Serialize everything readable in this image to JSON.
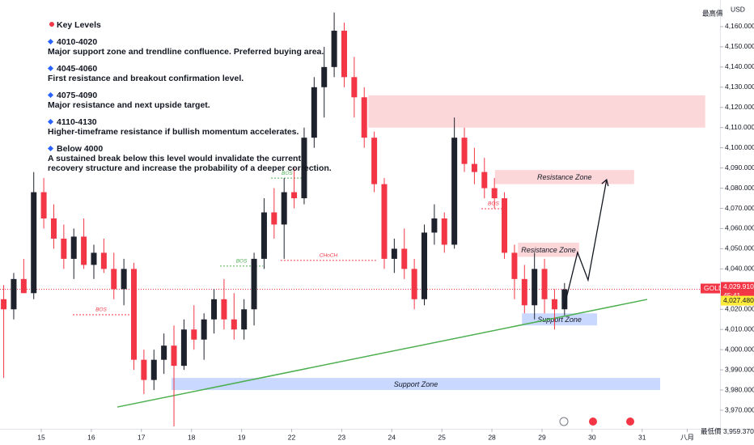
{
  "chart_data": {
    "type": "candlestick",
    "currency": "USD",
    "up_color": "#1e222d",
    "down_color": "#f23645",
    "xlim": [
      -0.824,
      13.555
    ],
    "ylim": [
      3960.8,
      4173.2
    ],
    "grid": false,
    "xticks": [
      {
        "value": 0,
        "label": "15"
      },
      {
        "value": 1,
        "label": "16"
      },
      {
        "value": 2,
        "label": "17"
      },
      {
        "value": 3,
        "label": "18"
      },
      {
        "value": 4,
        "label": "19"
      },
      {
        "value": 5,
        "label": "22"
      },
      {
        "value": 6,
        "label": "23"
      },
      {
        "value": 7,
        "label": "24"
      },
      {
        "value": 8,
        "label": "25"
      },
      {
        "value": 9,
        "label": "28"
      },
      {
        "value": 10,
        "label": "29"
      },
      {
        "value": 11,
        "label": "30"
      },
      {
        "value": 12,
        "label": "31"
      },
      {
        "value": 12.9,
        "label": "八月"
      }
    ],
    "yticks": [
      {
        "value": 3970,
        "label": "3,970.000"
      },
      {
        "value": 3980,
        "label": "3,980.000"
      },
      {
        "value": 3990,
        "label": "3,990.000"
      },
      {
        "value": 4000,
        "label": "4,000.000"
      },
      {
        "value": 4010,
        "label": "4,010.000"
      },
      {
        "value": 4020,
        "label": "4,020.000"
      },
      {
        "value": 4030,
        "label": "4,030.000"
      },
      {
        "value": 4040,
        "label": "4,040.000"
      },
      {
        "value": 4050,
        "label": "4,050.000"
      },
      {
        "value": 4060,
        "label": "4,060.000"
      },
      {
        "value": 4070,
        "label": "4,070.000"
      },
      {
        "value": 4080,
        "label": "4,080.000"
      },
      {
        "value": 4090,
        "label": "4,090.000"
      },
      {
        "value": 4100,
        "label": "4,100.000"
      },
      {
        "value": 4110,
        "label": "4,110.000"
      },
      {
        "value": 4120,
        "label": "4,120.000"
      },
      {
        "value": 4130,
        "label": "4,130.000"
      },
      {
        "value": 4140,
        "label": "4,140.000"
      },
      {
        "value": 4150,
        "label": "4,150.000"
      },
      {
        "value": 4160,
        "label": "4,160.000"
      }
    ],
    "x": [
      -0.75,
      -0.55,
      -0.35,
      -0.15,
      0.05,
      0.25,
      0.45,
      0.65,
      0.85,
      1.05,
      1.25,
      1.45,
      1.65,
      1.85,
      2.05,
      2.25,
      2.45,
      2.65,
      2.85,
      3.05,
      3.25,
      3.45,
      3.65,
      3.85,
      4.05,
      4.25,
      4.45,
      4.65,
      4.85,
      5.05,
      5.25,
      5.45,
      5.65,
      5.85,
      6.05,
      6.25,
      6.45,
      6.65,
      6.85,
      7.05,
      7.25,
      7.45,
      7.65,
      7.85,
      8.05,
      8.25,
      8.45,
      8.65,
      8.85,
      9.05,
      9.25,
      9.45,
      9.65,
      9.85,
      10.05,
      10.25,
      10.45
    ],
    "open": [
      4025,
      4020,
      4035,
      4028,
      4078,
      4065,
      4055,
      4045,
      4056,
      4042,
      4048,
      4040,
      4030,
      4040,
      3995,
      3985,
      3995,
      4002,
      3992,
      4010,
      4005,
      4015,
      4025,
      4015,
      4010,
      4020,
      4045,
      4068,
      4062,
      4078,
      4075,
      4105,
      4130,
      4140,
      4158,
      4135,
      4125,
      4105,
      4082,
      4045,
      4050,
      4040,
      4025,
      4058,
      4065,
      4052,
      4105,
      4092,
      4088,
      4080,
      4075,
      4048,
      4035,
      4022,
      4040,
      4025,
      4020
    ],
    "high": [
      4032,
      4038,
      4045,
      4088,
      4085,
      4072,
      4062,
      4060,
      4065,
      4052,
      4055,
      4048,
      4045,
      4043,
      4000,
      4000,
      4008,
      4012,
      4015,
      4022,
      4018,
      4030,
      4035,
      4028,
      4025,
      4048,
      4075,
      4080,
      4085,
      4090,
      4110,
      4135,
      4150,
      4167,
      4162,
      4145,
      4130,
      4108,
      4085,
      4055,
      4060,
      4045,
      4062,
      4072,
      4068,
      4115,
      4110,
      4100,
      4095,
      4085,
      4078,
      4052,
      4042,
      4048,
      4045,
      4030,
      4033
    ],
    "low": [
      3986,
      4015,
      4030,
      4025,
      4060,
      4050,
      4040,
      4035,
      4040,
      4035,
      4038,
      4025,
      4022,
      3990,
      3978,
      3980,
      3988,
      3962,
      3990,
      4000,
      3995,
      4008,
      4010,
      4005,
      4005,
      4012,
      4040,
      4055,
      4045,
      4070,
      4072,
      4100,
      4115,
      4135,
      4130,
      4115,
      4100,
      4078,
      4040,
      4038,
      4035,
      4020,
      4022,
      4052,
      4048,
      4050,
      4088,
      4082,
      4075,
      4070,
      4045,
      4025,
      4018,
      4015,
      4018,
      4010,
      4017
    ],
    "close": [
      4020,
      4035,
      4028,
      4078,
      4065,
      4055,
      4045,
      4056,
      4042,
      4048,
      4040,
      4030,
      4040,
      3995,
      3985,
      3995,
      4002,
      3992,
      4010,
      4005,
      4015,
      4025,
      4015,
      4010,
      4020,
      4045,
      4068,
      4062,
      4078,
      4075,
      4105,
      4130,
      4140,
      4158,
      4135,
      4125,
      4105,
      4082,
      4045,
      4050,
      4040,
      4025,
      4058,
      4065,
      4052,
      4105,
      4092,
      4088,
      4080,
      4075,
      4048,
      4035,
      4022,
      4040,
      4025,
      4020,
      4029.91
    ],
    "zones": [
      {
        "low": 4110,
        "high": 4126,
        "x": [
          6.53,
          13.26
        ],
        "color": "rgba(242,54,69,0.2)"
      },
      {
        "label": "Resistance Zone",
        "low": 4082,
        "high": 4089,
        "x": [
          9.06,
          11.84
        ],
        "color": "rgba(242,54,69,0.2)"
      },
      {
        "label": "Resistance Zone",
        "low": 4046,
        "high": 4053,
        "x": [
          9.52,
          10.74
        ],
        "color": "rgba(242,54,69,0.2)"
      },
      {
        "label": "Support Zone",
        "low": 4012,
        "high": 4018,
        "x": [
          9.6,
          11.1
        ],
        "color": "rgba(41,98,255,0.25)"
      },
      {
        "label": "Support Zone",
        "low": 3980,
        "high": 3986,
        "x": [
          2.6,
          12.36
        ],
        "color": "rgba(41,98,255,0.25)"
      }
    ],
    "structure": [
      {
        "label": "BOS",
        "price": 4017.3,
        "x": [
          0.63,
          1.76
        ],
        "color": "#f23645"
      },
      {
        "label": "BOS",
        "price": 4041.4,
        "x": [
          3.57,
          4.43
        ],
        "color": "#4caf50"
      },
      {
        "label": "BOS",
        "price": 4085,
        "x": [
          4.59,
          5.23
        ],
        "color": "#4caf50"
      },
      {
        "label": "CHoCH",
        "price": 4044.2,
        "x": [
          4.78,
          6.69
        ],
        "color": "#f23645"
      },
      {
        "label": "BOS",
        "price": 4069.8,
        "x": [
          8.79,
          9.27
        ],
        "color": "#f23645"
      }
    ],
    "trendline": {
      "x": [
        1.52,
        12.1
      ],
      "y": [
        3971.6,
        4024.9
      ],
      "color": "#4caf50"
    },
    "projection": {
      "x": [
        10.44,
        10.71,
        10.92,
        11.29
      ],
      "y": [
        4020.9,
        4048.2,
        4034.5,
        4084.2
      ],
      "color": "#131722"
    },
    "last_price": {
      "symbol": "GOLD",
      "value": 4029.91,
      "label": "4,029.910",
      "countdown": "45:41"
    },
    "bid_price": {
      "value": 4027.48,
      "label": "4,027.480"
    },
    "high_label": "最高價",
    "low_price": {
      "name": "最低價",
      "value": 3959.37,
      "label": "3,959.370"
    },
    "notes_title": "Key Levels",
    "notes": [
      {
        "heading": "4010-4020",
        "lines": [
          "Major support zone and trendline confluence. Preferred buying area."
        ]
      },
      {
        "heading": "4045-4060",
        "lines": [
          "First resistance and breakout confirmation level."
        ]
      },
      {
        "heading": "4075-4090",
        "lines": [
          "Major resistance and next upside target."
        ]
      },
      {
        "heading": "4110-4130",
        "lines": [
          "Higher-timeframe resistance if bullish momentum accelerates."
        ]
      },
      {
        "heading": "Below 4000",
        "lines": [
          "A sustained break below this level would invalidate the current",
          "recovery structure and increase the probability of a deeper correction."
        ]
      }
    ]
  }
}
